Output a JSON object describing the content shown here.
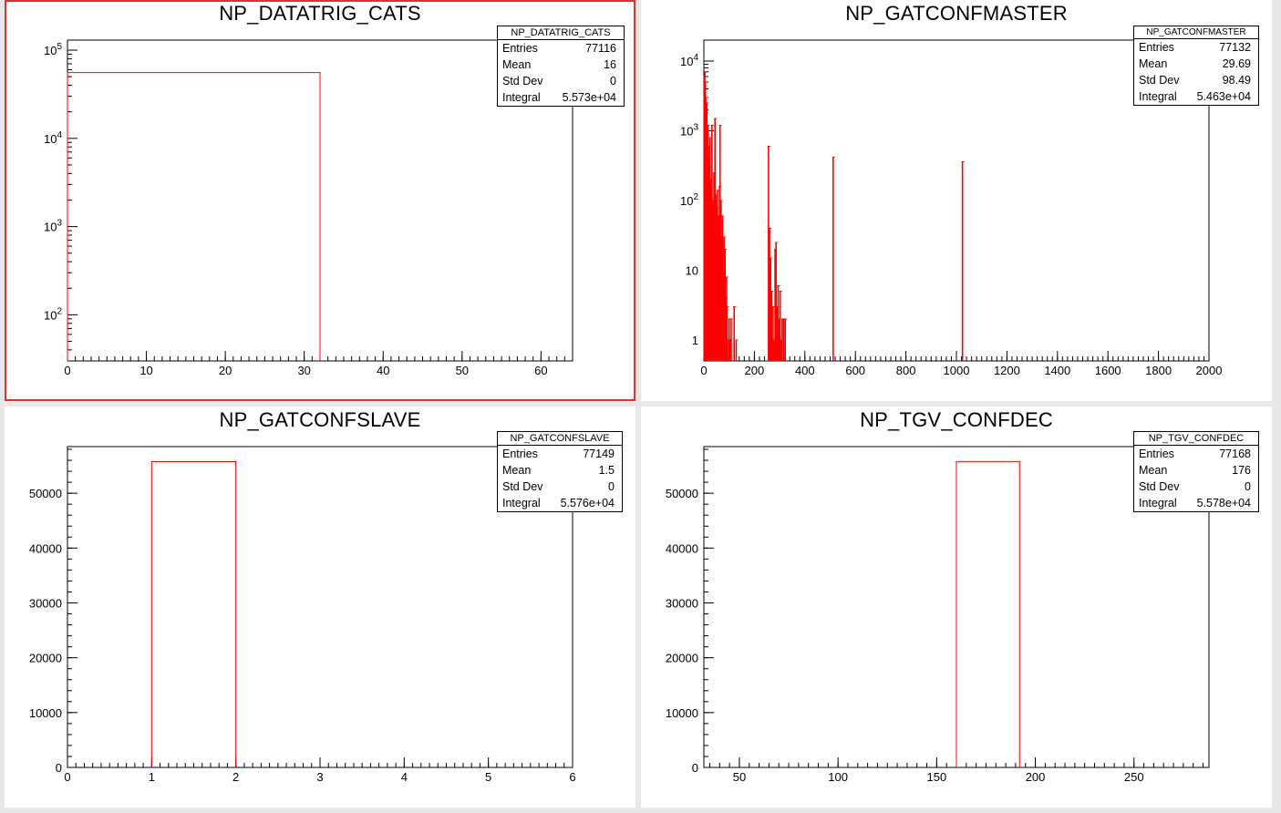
{
  "window": {
    "title": ""
  },
  "pads": [
    {
      "id": "pad1",
      "selected": true,
      "title": "NP_DATATRIG_CATS",
      "stats": {
        "name": "NP_DATATRIG_CATS",
        "entries": "77116",
        "mean": "16",
        "std_dev": "0",
        "integral": "5.573e+04"
      },
      "labels": {
        "entries": "Entries",
        "mean": "Mean",
        "std_dev": "Std Dev",
        "integral": "Integral"
      }
    },
    {
      "id": "pad2",
      "selected": false,
      "title": "NP_GATCONFMASTER",
      "stats": {
        "name": "NP_GATCONFMASTER",
        "entries": "77132",
        "mean": "29.69",
        "std_dev": "98.49",
        "integral": "5.463e+04"
      },
      "labels": {
        "entries": "Entries",
        "mean": "Mean",
        "std_dev": "Std Dev",
        "integral": "Integral"
      }
    },
    {
      "id": "pad3",
      "selected": false,
      "title": "NP_GATCONFSLAVE",
      "stats": {
        "name": "NP_GATCONFSLAVE",
        "entries": "77149",
        "mean": "1.5",
        "std_dev": "0",
        "integral": "5.576e+04"
      },
      "labels": {
        "entries": "Entries",
        "mean": "Mean",
        "std_dev": "Std Dev",
        "integral": "Integral"
      }
    },
    {
      "id": "pad4",
      "selected": false,
      "title": "NP_TGV_CONFDEC",
      "stats": {
        "name": "NP_TGV_CONFDEC",
        "entries": "77168",
        "mean": "176",
        "std_dev": "0",
        "integral": "5.578e+04"
      },
      "labels": {
        "entries": "Entries",
        "mean": "Mean",
        "std_dev": "Std Dev",
        "integral": "Integral"
      }
    }
  ],
  "chart_data": [
    {
      "type": "bar",
      "title": "NP_DATATRIG_CATS",
      "xlim": [
        0,
        64
      ],
      "ylim": [
        30,
        130000
      ],
      "ylog": true,
      "x_ticks": [
        0,
        10,
        20,
        30,
        40,
        50,
        60
      ],
      "y_ticks": [
        {
          "v": 100,
          "base": "10",
          "exp": "2"
        },
        {
          "v": 1000,
          "base": "10",
          "exp": "3"
        },
        {
          "v": 10000,
          "base": "10",
          "exp": "4"
        },
        {
          "v": 100000,
          "base": "10",
          "exp": "5"
        }
      ],
      "bins": [
        {
          "x0": 0,
          "x1": 32,
          "y": 55730
        }
      ],
      "line_color": "#ff0000"
    },
    {
      "type": "bar",
      "title": "NP_GATCONFMASTER",
      "xlim": [
        0,
        2000
      ],
      "ylim": [
        0.5,
        20000
      ],
      "ylog": true,
      "x_ticks": [
        0,
        200,
        400,
        600,
        800,
        1000,
        1200,
        1400,
        1600,
        1800,
        2000
      ],
      "y_ticks": [
        {
          "v": 1,
          "base": "1",
          "exp": ""
        },
        {
          "v": 10,
          "base": "10",
          "exp": ""
        },
        {
          "v": 100,
          "base": "10",
          "exp": "2"
        },
        {
          "v": 1000,
          "base": "10",
          "exp": "3"
        },
        {
          "v": 10000,
          "base": "10",
          "exp": "4"
        }
      ],
      "spikes": [
        [
          2,
          6000
        ],
        [
          4,
          7000
        ],
        [
          6,
          5000
        ],
        [
          8,
          3000
        ],
        [
          10,
          1800
        ],
        [
          12,
          2500
        ],
        [
          14,
          900
        ],
        [
          16,
          1200
        ],
        [
          18,
          600
        ],
        [
          20,
          400
        ],
        [
          22,
          300
        ],
        [
          24,
          800
        ],
        [
          26,
          200
        ],
        [
          28,
          150
        ],
        [
          30,
          30
        ],
        [
          32,
          1200
        ],
        [
          34,
          60
        ],
        [
          36,
          100
        ],
        [
          38,
          80
        ],
        [
          40,
          250
        ],
        [
          42,
          50
        ],
        [
          44,
          1500
        ],
        [
          46,
          40
        ],
        [
          48,
          120
        ],
        [
          50,
          80
        ],
        [
          52,
          20
        ],
        [
          54,
          140
        ],
        [
          56,
          30
        ],
        [
          58,
          60
        ],
        [
          60,
          10
        ],
        [
          62,
          160
        ],
        [
          64,
          1200
        ],
        [
          66,
          5
        ],
        [
          68,
          100
        ],
        [
          70,
          30
        ],
        [
          72,
          3
        ],
        [
          74,
          60
        ],
        [
          76,
          10
        ],
        [
          78,
          1
        ],
        [
          80,
          30
        ],
        [
          82,
          2
        ],
        [
          84,
          20
        ],
        [
          86,
          4
        ],
        [
          88,
          1
        ],
        [
          90,
          8
        ],
        [
          92,
          3
        ],
        [
          94,
          1
        ],
        [
          100,
          2
        ],
        [
          104,
          1
        ],
        [
          108,
          2
        ],
        [
          120,
          3
        ],
        [
          128,
          1
        ],
        [
          256,
          600
        ],
        [
          258,
          3
        ],
        [
          260,
          40
        ],
        [
          262,
          1
        ],
        [
          264,
          15
        ],
        [
          266,
          2
        ],
        [
          268,
          5
        ],
        [
          270,
          1
        ],
        [
          274,
          3
        ],
        [
          278,
          1
        ],
        [
          282,
          20
        ],
        [
          286,
          25
        ],
        [
          290,
          3
        ],
        [
          294,
          6
        ],
        [
          298,
          2
        ],
        [
          302,
          5
        ],
        [
          306,
          1
        ],
        [
          310,
          2
        ],
        [
          316,
          2
        ],
        [
          322,
          2
        ],
        [
          512,
          420
        ],
        [
          1024,
          360
        ]
      ],
      "line_color": "#ff0000"
    },
    {
      "type": "bar",
      "title": "NP_GATCONFSLAVE",
      "xlim": [
        0,
        6
      ],
      "ylim": [
        0,
        58500
      ],
      "ylog": false,
      "x_ticks": [
        0,
        1,
        2,
        3,
        4,
        5,
        6
      ],
      "y_ticks": [
        0,
        10000,
        20000,
        30000,
        40000,
        50000
      ],
      "bins": [
        {
          "x0": 1,
          "x1": 2,
          "y": 55760
        }
      ],
      "line_color": "#ff0000"
    },
    {
      "type": "bar",
      "title": "NP_TGV_CONFDEC",
      "xlim": [
        32,
        288
      ],
      "ylim": [
        0,
        58500
      ],
      "ylog": false,
      "x_ticks": [
        50,
        100,
        150,
        200,
        250
      ],
      "y_ticks": [
        0,
        10000,
        20000,
        30000,
        40000,
        50000
      ],
      "bins": [
        {
          "x0": 160,
          "x1": 192,
          "y": 55780
        }
      ],
      "line_color": "#ff0000"
    }
  ]
}
